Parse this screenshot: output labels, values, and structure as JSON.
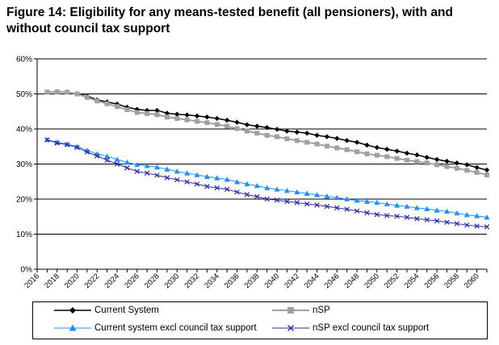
{
  "figure": {
    "title": "Figure 14: Eligibility for any means-tested benefit (all pensioners), with and without council tax support"
  },
  "chart_data": {
    "type": "line",
    "title": "Figure 14: Eligibility for any means-tested benefit (all pensioners), with and without council tax support",
    "xlabel": "",
    "ylabel": "",
    "x": [
      2017,
      2018,
      2019,
      2020,
      2021,
      2022,
      2023,
      2024,
      2025,
      2026,
      2027,
      2028,
      2029,
      2030,
      2031,
      2032,
      2033,
      2034,
      2035,
      2036,
      2037,
      2038,
      2039,
      2040,
      2041,
      2042,
      2043,
      2044,
      2045,
      2046,
      2047,
      2048,
      2049,
      2050,
      2051,
      2052,
      2053,
      2054,
      2055,
      2056,
      2057,
      2058,
      2059,
      2060,
      2061
    ],
    "xlim": [
      2016,
      2061
    ],
    "xticks": [
      "2016",
      "2018",
      "2020",
      "2022",
      "2024",
      "2026",
      "2028",
      "2030",
      "2032",
      "2034",
      "2036",
      "2038",
      "2040",
      "2042",
      "2044",
      "2046",
      "2048",
      "2050",
      "2052",
      "2054",
      "2056",
      "2058",
      "2060"
    ],
    "ylim": [
      0,
      60
    ],
    "yticks": [
      "0%",
      "10%",
      "20%",
      "30%",
      "40%",
      "50%",
      "60%"
    ],
    "grid": "horizontal",
    "legend_position": "bottom",
    "series": [
      {
        "name": "Current System",
        "color": "#000000",
        "marker": "diamond",
        "values": [
          50.5,
          50.6,
          50.5,
          50.0,
          49.4,
          48.3,
          47.7,
          47.1,
          46.2,
          45.6,
          45.3,
          45.3,
          44.5,
          44.2,
          44.0,
          43.7,
          43.4,
          43.0,
          42.5,
          41.9,
          41.2,
          40.8,
          40.4,
          39.9,
          39.4,
          39.1,
          38.8,
          38.2,
          37.8,
          37.3,
          36.7,
          36.2,
          35.4,
          34.7,
          34.2,
          33.7,
          33.1,
          32.6,
          31.9,
          31.3,
          30.8,
          30.3,
          29.8,
          29.0,
          28.3
        ]
      },
      {
        "name": "nSP",
        "color": "#a0a0a0",
        "marker": "square",
        "values": [
          50.5,
          50.6,
          50.5,
          50.0,
          49.0,
          48.0,
          47.2,
          46.4,
          45.5,
          44.7,
          44.4,
          44.1,
          43.4,
          43.0,
          42.6,
          42.2,
          41.8,
          41.3,
          40.8,
          40.1,
          39.4,
          38.8,
          38.2,
          37.8,
          37.2,
          36.7,
          36.2,
          35.7,
          35.1,
          34.6,
          34.1,
          33.5,
          32.9,
          32.5,
          32.1,
          31.6,
          31.1,
          30.7,
          30.3,
          29.8,
          29.3,
          28.8,
          28.2,
          27.6,
          26.9
        ]
      },
      {
        "name": "Current system excl council tax support",
        "color": "#1e90ff",
        "marker": "triangle",
        "values": [
          36.9,
          36.2,
          35.7,
          35.0,
          33.9,
          32.9,
          32.2,
          31.3,
          30.5,
          29.8,
          29.5,
          29.1,
          28.5,
          27.9,
          27.4,
          26.9,
          26.4,
          26.0,
          25.6,
          24.9,
          24.3,
          23.8,
          23.2,
          22.8,
          22.4,
          22.0,
          21.6,
          21.2,
          20.8,
          20.4,
          20.0,
          19.6,
          19.3,
          19.0,
          18.6,
          18.2,
          17.9,
          17.5,
          17.2,
          16.8,
          16.5,
          16.0,
          15.5,
          15.2,
          14.8
        ]
      },
      {
        "name": "nSP excl council tax support",
        "color": "#2a2ab0",
        "marker": "x",
        "values": [
          36.9,
          36.0,
          35.5,
          34.7,
          33.4,
          32.3,
          31.1,
          30.0,
          28.9,
          27.9,
          27.4,
          26.8,
          26.1,
          25.5,
          24.9,
          24.3,
          23.6,
          23.2,
          22.8,
          22.0,
          21.3,
          20.7,
          20.0,
          19.7,
          19.3,
          19.0,
          18.6,
          18.3,
          17.9,
          17.5,
          17.1,
          16.6,
          16.1,
          15.6,
          15.3,
          15.1,
          14.8,
          14.4,
          14.1,
          13.8,
          13.4,
          13.0,
          12.6,
          12.3,
          12.1
        ]
      }
    ]
  }
}
